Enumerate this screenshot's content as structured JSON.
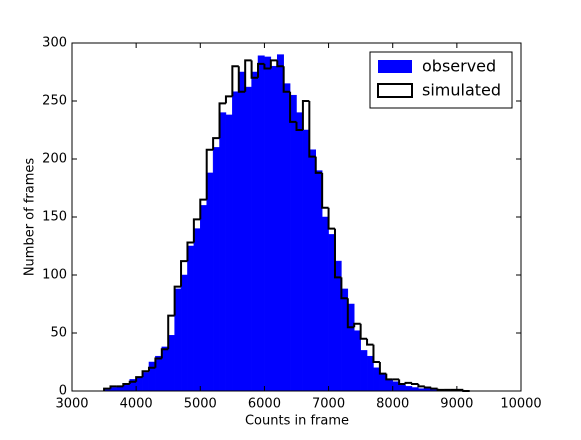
{
  "chart_data": {
    "type": "histogram",
    "xlabel": "Counts in frame",
    "ylabel": "Number of frames",
    "bins": [
      3500,
      3600,
      3700,
      3800,
      3900,
      4000,
      4100,
      4200,
      4300,
      4400,
      4500,
      4600,
      4700,
      4800,
      4900,
      5000,
      5100,
      5200,
      5300,
      5400,
      5500,
      5600,
      5700,
      5800,
      5900,
      6000,
      6100,
      6200,
      6300,
      6400,
      6500,
      6600,
      6700,
      6800,
      6900,
      7000,
      7100,
      7200,
      7300,
      7400,
      7500,
      7600,
      7700,
      7800,
      7900,
      8000,
      8100,
      8200,
      8300,
      8400,
      8500,
      8600,
      8700,
      8800,
      8900,
      9000,
      9100,
      9200
    ],
    "series": [
      {
        "name": "observed",
        "color": "#0000ff",
        "histtype": "stepfilled",
        "values": [
          1,
          3,
          4,
          5,
          10,
          12,
          16,
          25,
          30,
          38,
          48,
          88,
          100,
          125,
          140,
          160,
          188,
          210,
          240,
          238,
          258,
          275,
          262,
          275,
          289,
          288,
          280,
          290,
          265,
          255,
          240,
          225,
          208,
          190,
          150,
          135,
          112,
          88,
          75,
          52,
          35,
          30,
          20,
          14,
          10,
          8,
          5,
          4,
          3,
          2,
          2,
          1,
          1,
          1,
          0,
          0,
          0
        ]
      },
      {
        "name": "simulated",
        "color": "#000000",
        "histtype": "step",
        "values": [
          2,
          4,
          4,
          6,
          8,
          12,
          17,
          20,
          28,
          36,
          65,
          90,
          112,
          128,
          148,
          165,
          208,
          218,
          248,
          254,
          280,
          258,
          285,
          270,
          282,
          278,
          285,
          280,
          258,
          232,
          225,
          250,
          202,
          188,
          158,
          140,
          98,
          80,
          55,
          58,
          45,
          40,
          25,
          15,
          10,
          10,
          6,
          7,
          6,
          4,
          3,
          2,
          1,
          1,
          1,
          1,
          0
        ]
      }
    ],
    "xlim": [
      3000,
      10000
    ],
    "xticks": [
      3000,
      4000,
      5000,
      6000,
      7000,
      8000,
      9000,
      10000
    ],
    "ylim": [
      0,
      300
    ],
    "yticks": [
      0,
      50,
      100,
      150,
      200,
      250,
      300
    ],
    "legend": "upper right"
  }
}
